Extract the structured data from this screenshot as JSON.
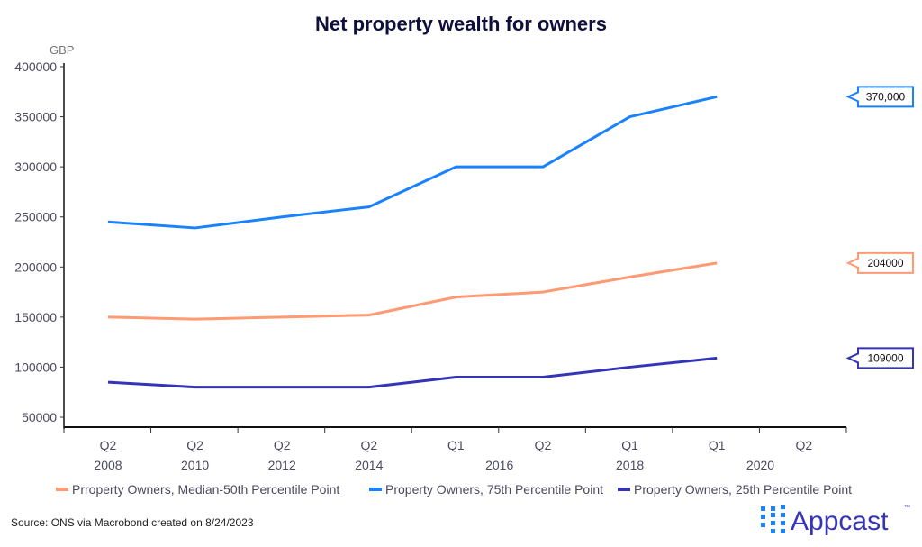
{
  "chart_data": {
    "type": "line",
    "title": "Net property wealth for owners",
    "ylabel": "GBP",
    "xlabel": "",
    "ylim": [
      50000,
      400000
    ],
    "yticks": [
      "400000",
      "350000",
      "300000",
      "250000",
      "200000",
      "150000",
      "100000",
      "50000"
    ],
    "ytick_values": [
      400000,
      350000,
      300000,
      250000,
      200000,
      150000,
      100000,
      50000
    ],
    "x_quarter_labels": [
      "Q2",
      "Q2",
      "Q2",
      "Q2",
      "Q1",
      "Q2",
      "Q1",
      "Q1",
      "Q2"
    ],
    "x_year_labels": [
      {
        "label": "2008",
        "at": 0
      },
      {
        "label": "2010",
        "at": 1
      },
      {
        "label": "2012",
        "at": 2
      },
      {
        "label": "2014",
        "at": 3
      },
      {
        "label": "2016",
        "at": 4.5
      },
      {
        "label": "2018",
        "at": 6
      },
      {
        "label": "2020",
        "at": 7.5
      }
    ],
    "grid": false,
    "legend_position": "bottom",
    "series": [
      {
        "name": "Prroperty Owners, Median-50th Percentile Point",
        "color": "#ff9a73",
        "values": [
          150000,
          148000,
          150000,
          152000,
          170000,
          175000,
          190000,
          204000
        ],
        "end_label": "204000"
      },
      {
        "name": "Property Owners, 75th Percentile Point",
        "color": "#1a82ff",
        "values": [
          245000,
          239000,
          250000,
          260000,
          300000,
          300000,
          350000,
          370000
        ],
        "end_label": "370,000"
      },
      {
        "name": "Property Owners, 25th Percentile Point",
        "color": "#3434b8",
        "values": [
          85000,
          80000,
          80000,
          80000,
          90000,
          90000,
          100000,
          109000
        ],
        "end_label": "109000"
      }
    ]
  },
  "footer": {
    "source": "Source: ONS via Macrobond created on 8/24/2023",
    "logo_text": "Appcast",
    "logo_tm": "™"
  }
}
